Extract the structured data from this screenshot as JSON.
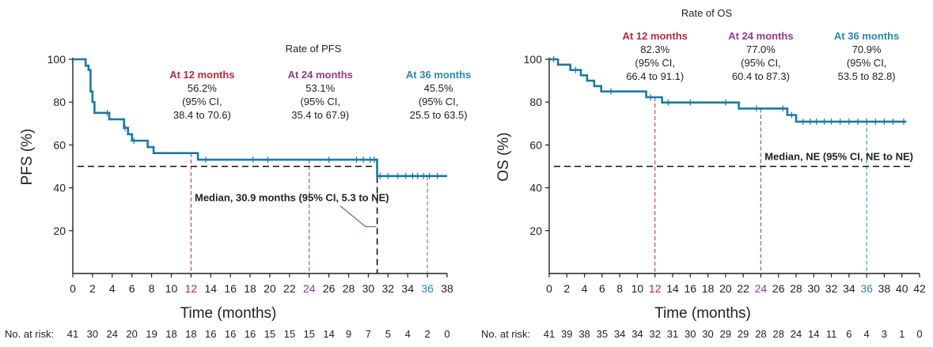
{
  "colors": {
    "curve": "#1a7aa3",
    "at12": "#b22a3a",
    "at24": "#8c3a8f",
    "at36": "#2a87ad",
    "axis": "#222222",
    "text": "#222222"
  },
  "chart_data": [
    {
      "type": "line",
      "id": "pfs",
      "title": "Rate of PFS",
      "xlabel": "Time (months)",
      "ylabel": "PFS (%)",
      "xlim": [
        0,
        38
      ],
      "ylim": [
        0,
        100
      ],
      "xticks": [
        "0",
        "2",
        "4",
        "6",
        "8",
        "10",
        "12",
        "14",
        "16",
        "18",
        "20",
        "22",
        "24",
        "26",
        "28",
        "30",
        "32",
        "34",
        "36",
        "38"
      ],
      "yticks": [
        "20",
        "40",
        "60",
        "80",
        "100"
      ],
      "series": [
        {
          "name": "PFS",
          "x": [
            0,
            1.3,
            1.3,
            1.6,
            1.6,
            1.8,
            1.8,
            2.0,
            2.0,
            2.2,
            2.2,
            3.7,
            3.7,
            5.2,
            5.2,
            5.6,
            5.6,
            6.0,
            6.0,
            7.6,
            7.6,
            8.2,
            8.2,
            12.7,
            12.7,
            30.9,
            30.9,
            38.0
          ],
          "y": [
            100,
            100,
            97,
            97,
            95,
            95,
            85,
            85,
            80,
            80,
            75,
            75,
            72,
            72,
            68,
            68,
            65,
            65,
            62,
            62,
            59,
            59,
            56.2,
            56.2,
            53.1,
            53.1,
            45.5,
            45.5
          ]
        }
      ],
      "censor_x": [
        3.5,
        5.3,
        6.2,
        13.5,
        18.3,
        19.8,
        26.0,
        28.8,
        29.5,
        30.2,
        30.6,
        31.2,
        32.0,
        33.0,
        33.8,
        34.5,
        35.0,
        35.6,
        36.2,
        37.0
      ],
      "median": {
        "y": 50,
        "x": 30.9,
        "label": "Median, 30.9 months (95% CI, 5.3 to NE)"
      },
      "annotations": [
        {
          "x": 12,
          "heading": "At 12 months",
          "rate": "56.2%",
          "ci1": "(95% CI,",
          "ci2": "38.4 to 70.6)",
          "color": "#b22a3a"
        },
        {
          "x": 24,
          "heading": "At 24 months",
          "rate": "53.1%",
          "ci1": "(95% CI,",
          "ci2": "35.4 to 67.9)",
          "color": "#8c3a8f"
        },
        {
          "x": 36,
          "heading": "At 36 months",
          "rate": "45.5%",
          "ci1": "(95% CI,",
          "ci2": "25.5 to 63.5)",
          "color": "#2a87ad"
        }
      ],
      "risk_label": "No. at risk:",
      "risk": [
        "41",
        "30",
        "24",
        "20",
        "19",
        "18",
        "18",
        "16",
        "16",
        "16",
        "15",
        "15",
        "15",
        "14",
        "9",
        "7",
        "5",
        "4",
        "2",
        "0"
      ]
    },
    {
      "type": "line",
      "id": "os",
      "title": "Rate of OS",
      "xlabel": "Time (months)",
      "ylabel": "OS (%)",
      "xlim": [
        0,
        42
      ],
      "ylim": [
        0,
        100
      ],
      "xticks": [
        "0",
        "2",
        "4",
        "6",
        "8",
        "10",
        "12",
        "14",
        "16",
        "18",
        "20",
        "22",
        "24",
        "26",
        "28",
        "30",
        "32",
        "34",
        "36",
        "38",
        "40",
        "42"
      ],
      "yticks": [
        "20",
        "40",
        "60",
        "80",
        "100"
      ],
      "series": [
        {
          "name": "OS",
          "x": [
            0,
            1.0,
            1.0,
            2.4,
            2.4,
            3.6,
            3.6,
            4.3,
            4.3,
            5.1,
            5.1,
            5.9,
            5.9,
            11.0,
            11.0,
            12.8,
            12.8,
            21.5,
            21.5,
            27.0,
            27.0,
            28.0,
            28.0,
            40.5
          ],
          "y": [
            100,
            100,
            97.5,
            97.5,
            95,
            95,
            92.5,
            92.5,
            90,
            90,
            87.5,
            87.5,
            85,
            85,
            82.3,
            82.3,
            79.8,
            79.8,
            77.0,
            77.0,
            74,
            74,
            70.9,
            70.9
          ]
        }
      ],
      "censor_x": [
        0.5,
        3.0,
        7.0,
        11.5,
        13.5,
        16.0,
        20.0,
        23.5,
        26.5,
        27.5,
        28.8,
        29.6,
        30.3,
        31.2,
        32.0,
        33.0,
        34.0,
        35.0,
        36.0,
        37.0,
        38.0,
        39.0,
        40.2
      ],
      "median": {
        "y": 50,
        "label": "Median, NE (95% CI, NE to NE)"
      },
      "annotations": [
        {
          "x": 12,
          "heading": "At 12 months",
          "rate": "82.3%",
          "ci1": "(95% CI,",
          "ci2": "66.4 to 91.1)",
          "color": "#b22a3a"
        },
        {
          "x": 24,
          "heading": "At 24 months",
          "rate": "77.0%",
          "ci1": "(95% CI,",
          "ci2": "60.4 to 87.3)",
          "color": "#8c3a8f"
        },
        {
          "x": 36,
          "heading": "At 36 months",
          "rate": "70.9%",
          "ci1": "(95% CI,",
          "ci2": "53.5 to 82.8)",
          "color": "#2a87ad"
        }
      ],
      "risk_label": "No. at risk:",
      "risk": [
        "41",
        "39",
        "38",
        "35",
        "34",
        "34",
        "32",
        "31",
        "30",
        "30",
        "29",
        "29",
        "28",
        "28",
        "24",
        "14",
        "11",
        "6",
        "4",
        "3",
        "1",
        "0"
      ]
    }
  ]
}
